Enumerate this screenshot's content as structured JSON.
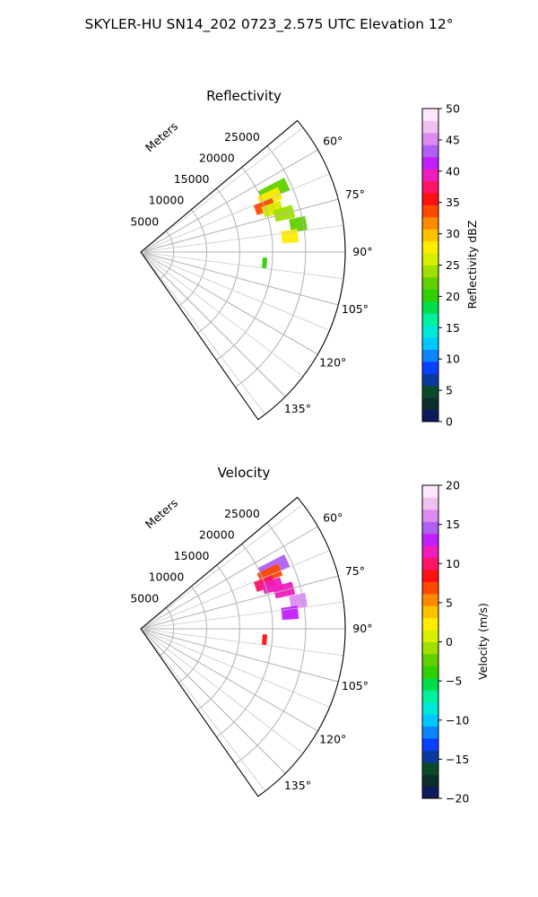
{
  "figure_title": "SKYLER-HU  SN14_202  0723_2.575 UTC Elevation 12°",
  "chart_data": [
    {
      "type": "heatmap",
      "subtype": "polar-sector (PPI radar)",
      "title": "Reflectivity",
      "radial_label": "Meters",
      "radial_ticks": [
        "5000",
        "10000",
        "15000",
        "20000",
        "25000"
      ],
      "radial_tick_values": [
        5000,
        10000,
        15000,
        20000,
        25000
      ],
      "rlim": [
        0,
        31000
      ],
      "azimuth_ticks": [
        "60°",
        "75°",
        "90°",
        "105°",
        "120°",
        "135°"
      ],
      "azimuth_tick_values": [
        60,
        75,
        90,
        105,
        120,
        135
      ],
      "azimuth_range_deg": [
        50,
        145
      ],
      "grid": true,
      "colorbar": {
        "label": "Reflectivity dBZ",
        "vmin": 0,
        "vmax": 50,
        "ticks": [
          "0",
          "5",
          "10",
          "15",
          "20",
          "25",
          "30",
          "35",
          "40",
          "45",
          "50"
        ],
        "tick_values": [
          0,
          5,
          10,
          15,
          20,
          25,
          30,
          35,
          40,
          45,
          50
        ],
        "colors": [
          "#0d1a5c",
          "#0d2e2e",
          "#0a4a2a",
          "#0a3aa0",
          "#0a40ff",
          "#0a86ff",
          "#00c8ff",
          "#00e8d8",
          "#00f0a0",
          "#00e04a",
          "#30d000",
          "#62d000",
          "#a0e000",
          "#d8ee00",
          "#ffec00",
          "#ffc000",
          "#ff8a00",
          "#ff4a00",
          "#ff1010",
          "#ff1468",
          "#f01cbe",
          "#c020ff",
          "#b060f0",
          "#dc8cf0",
          "#f0c0f0",
          "#ffe8ff"
        ]
      },
      "echo_regions": [
        {
          "az": 65,
          "r_min": 20000,
          "r_max": 24500,
          "value": 23
        },
        {
          "az": 67,
          "r_min": 19500,
          "r_max": 23000,
          "value": 28
        },
        {
          "az": 70,
          "r_min": 18500,
          "r_max": 21500,
          "value": 33
        },
        {
          "az": 72,
          "r_min": 19500,
          "r_max": 22500,
          "value": 26
        },
        {
          "az": 75,
          "r_min": 21000,
          "r_max": 24000,
          "value": 24
        },
        {
          "az": 80,
          "r_min": 23000,
          "r_max": 25500,
          "value": 22
        },
        {
          "az": 84,
          "r_min": 21500,
          "r_max": 24000,
          "value": 27
        },
        {
          "az": 95,
          "r_min": 18500,
          "r_max": 19200,
          "value": 21
        }
      ]
    },
    {
      "type": "heatmap",
      "subtype": "polar-sector (PPI radar)",
      "title": "Velocity",
      "radial_label": "Meters",
      "radial_ticks": [
        "5000",
        "10000",
        "15000",
        "20000",
        "25000"
      ],
      "radial_tick_values": [
        5000,
        10000,
        15000,
        20000,
        25000
      ],
      "rlim": [
        0,
        31000
      ],
      "azimuth_ticks": [
        "60°",
        "75°",
        "90°",
        "105°",
        "120°",
        "135°"
      ],
      "azimuth_tick_values": [
        60,
        75,
        90,
        105,
        120,
        135
      ],
      "azimuth_range_deg": [
        50,
        145
      ],
      "grid": true,
      "colorbar": {
        "label": "Velocity (m/s)",
        "vmin": -20,
        "vmax": 20,
        "ticks": [
          "−20",
          "−15",
          "−10",
          "−5",
          "0",
          "5",
          "10",
          "15",
          "20"
        ],
        "tick_values": [
          -20,
          -15,
          -10,
          -5,
          0,
          5,
          10,
          15,
          20
        ],
        "colors": [
          "#0d1a5c",
          "#0d2e2e",
          "#0a4a2a",
          "#0a3aa0",
          "#0a40ff",
          "#0a86ff",
          "#00c8ff",
          "#00e8d8",
          "#00f0a0",
          "#00e04a",
          "#30d000",
          "#62d000",
          "#a0e000",
          "#d8ee00",
          "#ffec00",
          "#ffc000",
          "#ff8a00",
          "#ff4a00",
          "#ff1010",
          "#ff1468",
          "#f01cbe",
          "#c020ff",
          "#b060f0",
          "#dc8cf0",
          "#f0c0f0",
          "#ffe8ff"
        ]
      },
      "echo_regions": [
        {
          "az": 65,
          "r_min": 20000,
          "r_max": 24500,
          "value": 14
        },
        {
          "az": 67,
          "r_min": 19500,
          "r_max": 23000,
          "value": 7
        },
        {
          "az": 70,
          "r_min": 18500,
          "r_max": 21500,
          "value": 10
        },
        {
          "az": 72,
          "r_min": 19500,
          "r_max": 22500,
          "value": 12
        },
        {
          "az": 75,
          "r_min": 21000,
          "r_max": 24000,
          "value": 11
        },
        {
          "az": 80,
          "r_min": 23000,
          "r_max": 25500,
          "value": 16
        },
        {
          "az": 84,
          "r_min": 21500,
          "r_max": 24000,
          "value": 13
        },
        {
          "az": 95,
          "r_min": 18500,
          "r_max": 19200,
          "value": 8
        }
      ]
    }
  ]
}
